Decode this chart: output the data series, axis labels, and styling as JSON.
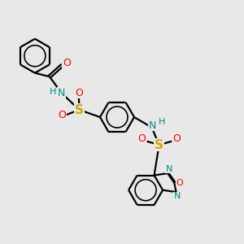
{
  "bg_color": "#e8e8e8",
  "bond_color": "#000000",
  "bond_lw": 1.6,
  "atom_colors": {
    "N": "#008b8b",
    "O": "#ff0000",
    "S": "#ccaa00"
  },
  "figsize": [
    3.0,
    3.0
  ],
  "dpi": 100,
  "xlim": [
    0,
    10
  ],
  "ylim": [
    0,
    10
  ]
}
